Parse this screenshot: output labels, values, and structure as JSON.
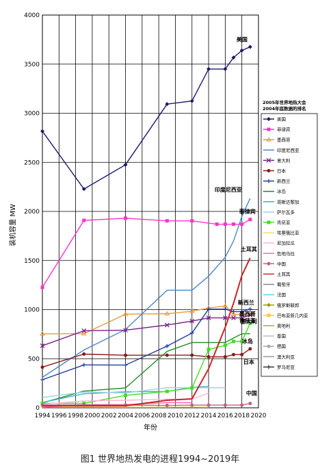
{
  "caption": "图1 世界地热发电的进程1994~2019年",
  "chart_data": {
    "type": "line",
    "title": "",
    "xlabel": "年份",
    "ylabel": "装机容量 MW",
    "xlim": [
      1994,
      2020
    ],
    "ylim": [
      0,
      4000
    ],
    "x_ticks": [
      1994,
      1996,
      1998,
      2000,
      2002,
      2004,
      2006,
      2008,
      2010,
      2012,
      2014,
      2016,
      2018,
      2020
    ],
    "y_ticks": [
      0,
      500,
      1000,
      1500,
      2000,
      2500,
      3000,
      3500,
      4000
    ],
    "grid": "vertical lines every 2 years, horizontal lines every 500 MW",
    "legend_title_lines": [
      "2005年世界地热大会",
      "2004年底数据的排名"
    ],
    "legend_position": "right",
    "series": [
      {
        "name": "美国",
        "color": "#1a1a6e",
        "marker": "diamond",
        "points": [
          [
            1994,
            2817
          ],
          [
            1999,
            2228
          ],
          [
            2004,
            2475
          ],
          [
            2009,
            3093
          ],
          [
            2012,
            3125
          ],
          [
            2014,
            3450
          ],
          [
            2016,
            3450
          ],
          [
            2017,
            3567
          ],
          [
            2018,
            3639
          ],
          [
            2019,
            3676
          ]
        ],
        "end_label": "美国"
      },
      {
        "name": "菲律宾",
        "color": "#ff33cc",
        "marker": "square",
        "points": [
          [
            1994,
            1227
          ],
          [
            1999,
            1909
          ],
          [
            2004,
            1931
          ],
          [
            2009,
            1904
          ],
          [
            2012,
            1904
          ],
          [
            2015,
            1870
          ],
          [
            2016,
            1870
          ],
          [
            2017,
            1870
          ],
          [
            2018,
            1870
          ],
          [
            2019,
            1918
          ]
        ],
        "end_label": "菲律宾"
      },
      {
        "name": "墨西哥",
        "color": "#e89a3a",
        "marker": "triangle",
        "points": [
          [
            1994,
            753
          ],
          [
            1999,
            755
          ],
          [
            2004,
            953
          ],
          [
            2009,
            958
          ],
          [
            2012,
            983
          ],
          [
            2014,
            1017
          ],
          [
            2016,
            1037
          ],
          [
            2017,
            951
          ],
          [
            2018,
            951
          ],
          [
            2019,
            951
          ]
        ],
        "end_label": "墨西哥"
      },
      {
        "name": "印度尼西亚",
        "color": "#4a86c8",
        "marker": "none",
        "points": [
          [
            1994,
            310
          ],
          [
            1999,
            589
          ],
          [
            2004,
            797
          ],
          [
            2009,
            1197
          ],
          [
            2012,
            1197
          ],
          [
            2014,
            1340
          ],
          [
            2016,
            1534
          ],
          [
            2017,
            1698
          ],
          [
            2018,
            1948
          ],
          [
            2019,
            2133
          ]
        ],
        "end_label": "印度尼西亚"
      },
      {
        "name": "意大利",
        "color": "#7a1f8a",
        "marker": "x",
        "points": [
          [
            1994,
            632
          ],
          [
            1999,
            785
          ],
          [
            2004,
            790
          ],
          [
            2009,
            843
          ],
          [
            2012,
            883
          ],
          [
            2014,
            916
          ],
          [
            2016,
            916
          ],
          [
            2017,
            916
          ],
          [
            2018,
            916
          ],
          [
            2019,
            944
          ]
        ],
        "end_label": "意大利"
      },
      {
        "name": "日本",
        "color": "#8b1a1a",
        "marker": "circle",
        "points": [
          [
            1994,
            414
          ],
          [
            1999,
            547
          ],
          [
            2004,
            535
          ],
          [
            2009,
            536
          ],
          [
            2012,
            536
          ],
          [
            2014,
            519
          ],
          [
            2016,
            519
          ],
          [
            2017,
            542
          ],
          [
            2018,
            542
          ],
          [
            2019,
            600
          ]
        ],
        "end_label": "日本"
      },
      {
        "name": "新西兰",
        "color": "#1f3aa0",
        "marker": "plus",
        "points": [
          [
            1994,
            286
          ],
          [
            1999,
            437
          ],
          [
            2004,
            435
          ],
          [
            2009,
            628
          ],
          [
            2012,
            762
          ],
          [
            2014,
            1005
          ],
          [
            2016,
            1005
          ],
          [
            2017,
            980
          ],
          [
            2018,
            980
          ],
          [
            2019,
            1005
          ]
        ],
        "end_label": "新西兰"
      },
      {
        "name": "冰岛",
        "color": "#1f8a2a",
        "marker": "none",
        "points": [
          [
            1994,
            50
          ],
          [
            1999,
            170
          ],
          [
            2004,
            202
          ],
          [
            2009,
            575
          ],
          [
            2012,
            665
          ],
          [
            2014,
            665
          ],
          [
            2016,
            665
          ],
          [
            2017,
            710
          ],
          [
            2018,
            753
          ],
          [
            2019,
            755
          ]
        ],
        "end_label": "冰岛"
      },
      {
        "name": "哥斯达黎加",
        "color": "#3ab0c8",
        "marker": "none",
        "points": [
          [
            1994,
            55
          ],
          [
            1999,
            143
          ],
          [
            2004,
            163
          ],
          [
            2009,
            166
          ],
          [
            2012,
            208
          ],
          [
            2014,
            218
          ]
        ],
        "end_label": ""
      },
      {
        "name": "萨尔瓦多",
        "color": "#9ad0e0",
        "marker": "none",
        "points": [
          [
            1994,
            105
          ],
          [
            1999,
            161
          ],
          [
            2004,
            151
          ],
          [
            2009,
            204
          ],
          [
            2012,
            204
          ],
          [
            2014,
            204
          ],
          [
            2016,
            204
          ]
        ],
        "end_label": ""
      },
      {
        "name": "肯尼亚",
        "color": "#44dd22",
        "marker": "square",
        "points": [
          [
            1994,
            45
          ],
          [
            1999,
            45
          ],
          [
            2004,
            127
          ],
          [
            2009,
            167
          ],
          [
            2012,
            202
          ],
          [
            2014,
            594
          ],
          [
            2016,
            636
          ],
          [
            2017,
            676
          ],
          [
            2018,
            676
          ],
          [
            2019,
            861
          ]
        ],
        "end_label": "肯尼亚"
      },
      {
        "name": "埃塞俄比亚",
        "color": "#ffd966",
        "marker": "none",
        "points": [
          [
            1994,
            8
          ],
          [
            1999,
            8
          ],
          [
            2004,
            7
          ],
          [
            2009,
            7
          ],
          [
            2012,
            8
          ],
          [
            2014,
            7
          ]
        ],
        "end_label": ""
      },
      {
        "name": "尼加拉瓜",
        "color": "#ffb3d9",
        "marker": "none",
        "points": [
          [
            1994,
            35
          ],
          [
            1999,
            70
          ],
          [
            2004,
            77
          ],
          [
            2009,
            88
          ],
          [
            2012,
            88
          ],
          [
            2014,
            150
          ]
        ],
        "end_label": ""
      },
      {
        "name": "危地马拉",
        "color": "#ff66b3",
        "marker": "none",
        "points": [
          [
            1994,
            5
          ],
          [
            1999,
            33
          ],
          [
            2004,
            33
          ],
          [
            2009,
            52
          ],
          [
            2012,
            52
          ]
        ],
        "end_label": ""
      },
      {
        "name": "中国",
        "color": "#c06080",
        "marker": "circle",
        "points": [
          [
            1994,
            28
          ],
          [
            1999,
            29
          ],
          [
            2004,
            28
          ],
          [
            2009,
            24
          ],
          [
            2012,
            27
          ],
          [
            2014,
            27
          ],
          [
            2016,
            27
          ],
          [
            2018,
            27
          ],
          [
            2019,
            44
          ]
        ],
        "end_label": "中国"
      },
      {
        "name": "土耳其",
        "color": "#cc2222",
        "marker": "none",
        "points": [
          [
            1994,
            20
          ],
          [
            1999,
            20
          ],
          [
            2004,
            20
          ],
          [
            2009,
            77
          ],
          [
            2012,
            91
          ],
          [
            2014,
            397
          ],
          [
            2016,
            820
          ],
          [
            2017,
            1064
          ],
          [
            2018,
            1347
          ],
          [
            2019,
            1526
          ]
        ],
        "end_label": "土耳其"
      }
    ],
    "legend_extra": [
      "葡萄牙",
      "法国",
      "俄罗斯联邦",
      "巴布亚新几内亚",
      "奥地利",
      "泰国",
      "德国",
      "澳大利亚",
      "罗马尼亚"
    ],
    "legend_extra_colors": [
      "#888888",
      "#66ccee",
      "#999900",
      "#ffcc33",
      "#cc9933",
      "#bbbbbb",
      "#aaaaaa",
      "#999999",
      "#333333"
    ],
    "legend_extra_markers": [
      "none",
      "none",
      "diamond",
      "square",
      "none",
      "none",
      "circle",
      "none",
      "plus"
    ]
  }
}
